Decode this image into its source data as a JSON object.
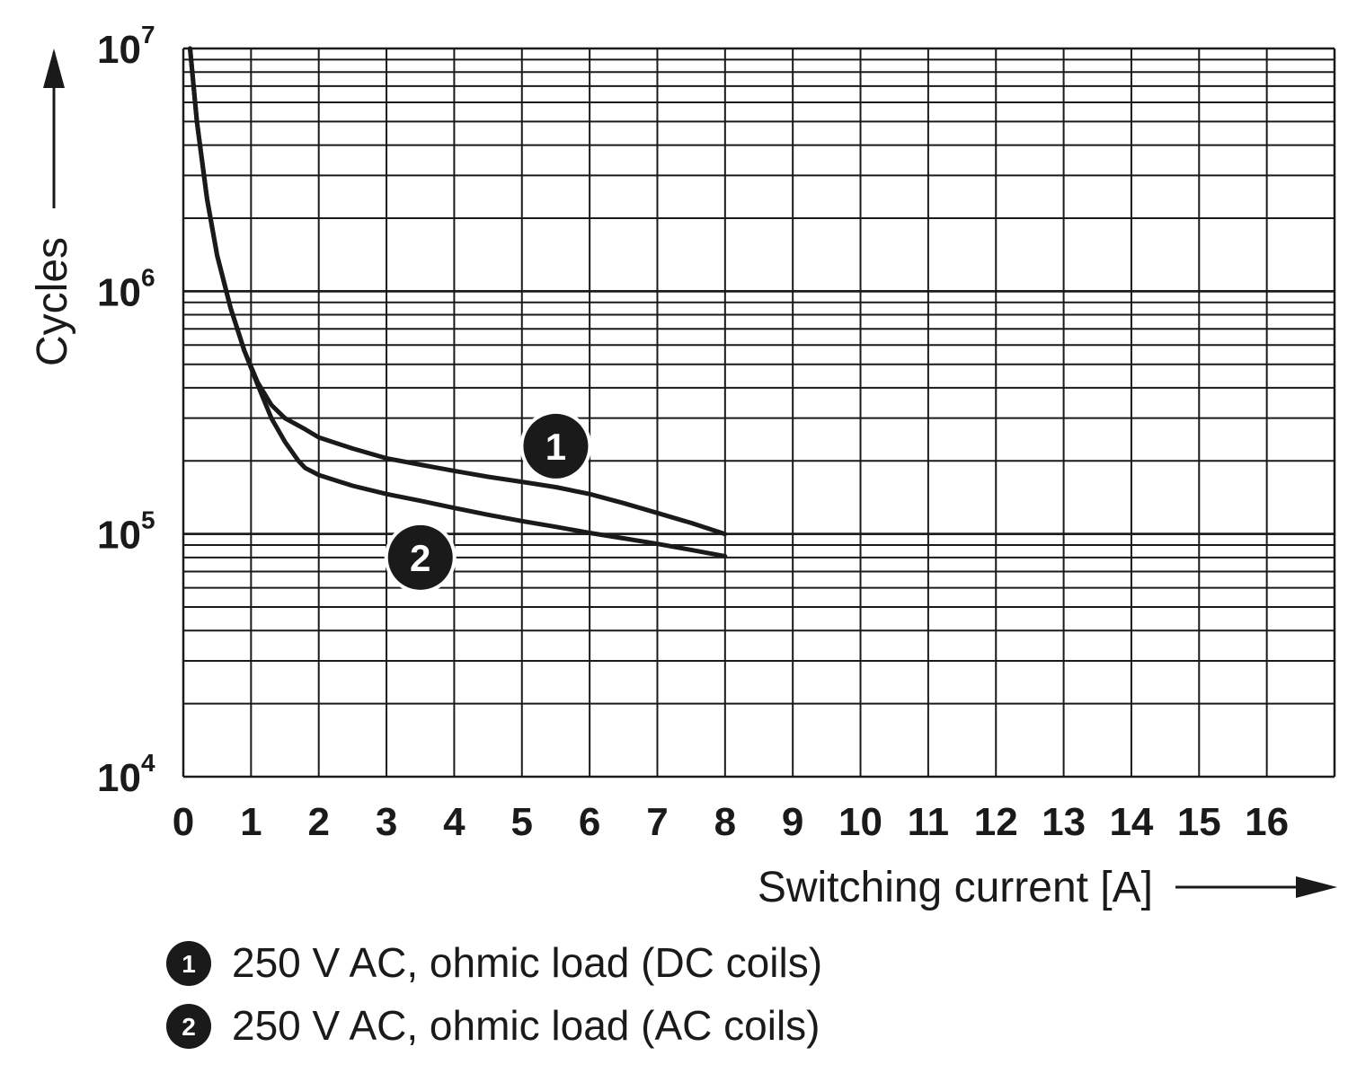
{
  "chart_data": {
    "type": "line",
    "xlabel": "Switching current [A]",
    "ylabel": "Cycles",
    "xlim": [
      0,
      17
    ],
    "ylim": [
      10000,
      10000000
    ],
    "yscale": "log",
    "grid": true,
    "x_ticks": [
      "0",
      "1",
      "2",
      "3",
      "4",
      "5",
      "6",
      "7",
      "8",
      "9",
      "10",
      "11",
      "12",
      "13",
      "14",
      "15",
      "16"
    ],
    "y_ticks": [
      {
        "base": "10",
        "exp": "4",
        "value": 10000
      },
      {
        "base": "10",
        "exp": "5",
        "value": 100000
      },
      {
        "base": "10",
        "exp": "6",
        "value": 1000000
      },
      {
        "base": "10",
        "exp": "7",
        "value": 10000000
      }
    ],
    "series": [
      {
        "marker": "1",
        "x": [
          0.1,
          0.2,
          0.35,
          0.5,
          0.7,
          0.9,
          1.1,
          1.3,
          1.5,
          1.8,
          2.0,
          2.5,
          3.0,
          3.5,
          4.0,
          4.5,
          5.0,
          5.5,
          6.0,
          6.5,
          7.0,
          7.5,
          8.0
        ],
        "y": [
          10000000,
          5000000,
          2400000,
          1400000,
          850000,
          570000,
          420000,
          340000,
          300000,
          270000,
          250000,
          225000,
          205000,
          193000,
          182000,
          172000,
          164000,
          156000,
          146000,
          134000,
          122000,
          111000,
          100000
        ]
      },
      {
        "marker": "2",
        "x": [
          0.1,
          0.2,
          0.35,
          0.5,
          0.7,
          0.9,
          1.1,
          1.3,
          1.5,
          1.7,
          1.8,
          2.0,
          2.5,
          3.0,
          3.5,
          4.0,
          4.5,
          5.0,
          5.5,
          6.0,
          6.5,
          7.0,
          7.5,
          8.0
        ],
        "y": [
          10000000,
          5000000,
          2400000,
          1400000,
          850000,
          570000,
          410000,
          300000,
          240000,
          200000,
          187000,
          175000,
          158000,
          146000,
          137000,
          128000,
          120000,
          113000,
          107000,
          101000,
          96000,
          91000,
          86000,
          81000
        ]
      }
    ],
    "legend": [
      {
        "marker": "1",
        "text": "250 V AC, ohmic load (DC coils)"
      },
      {
        "marker": "2",
        "text": "250 V AC, ohmic load (AC coils)"
      }
    ]
  }
}
